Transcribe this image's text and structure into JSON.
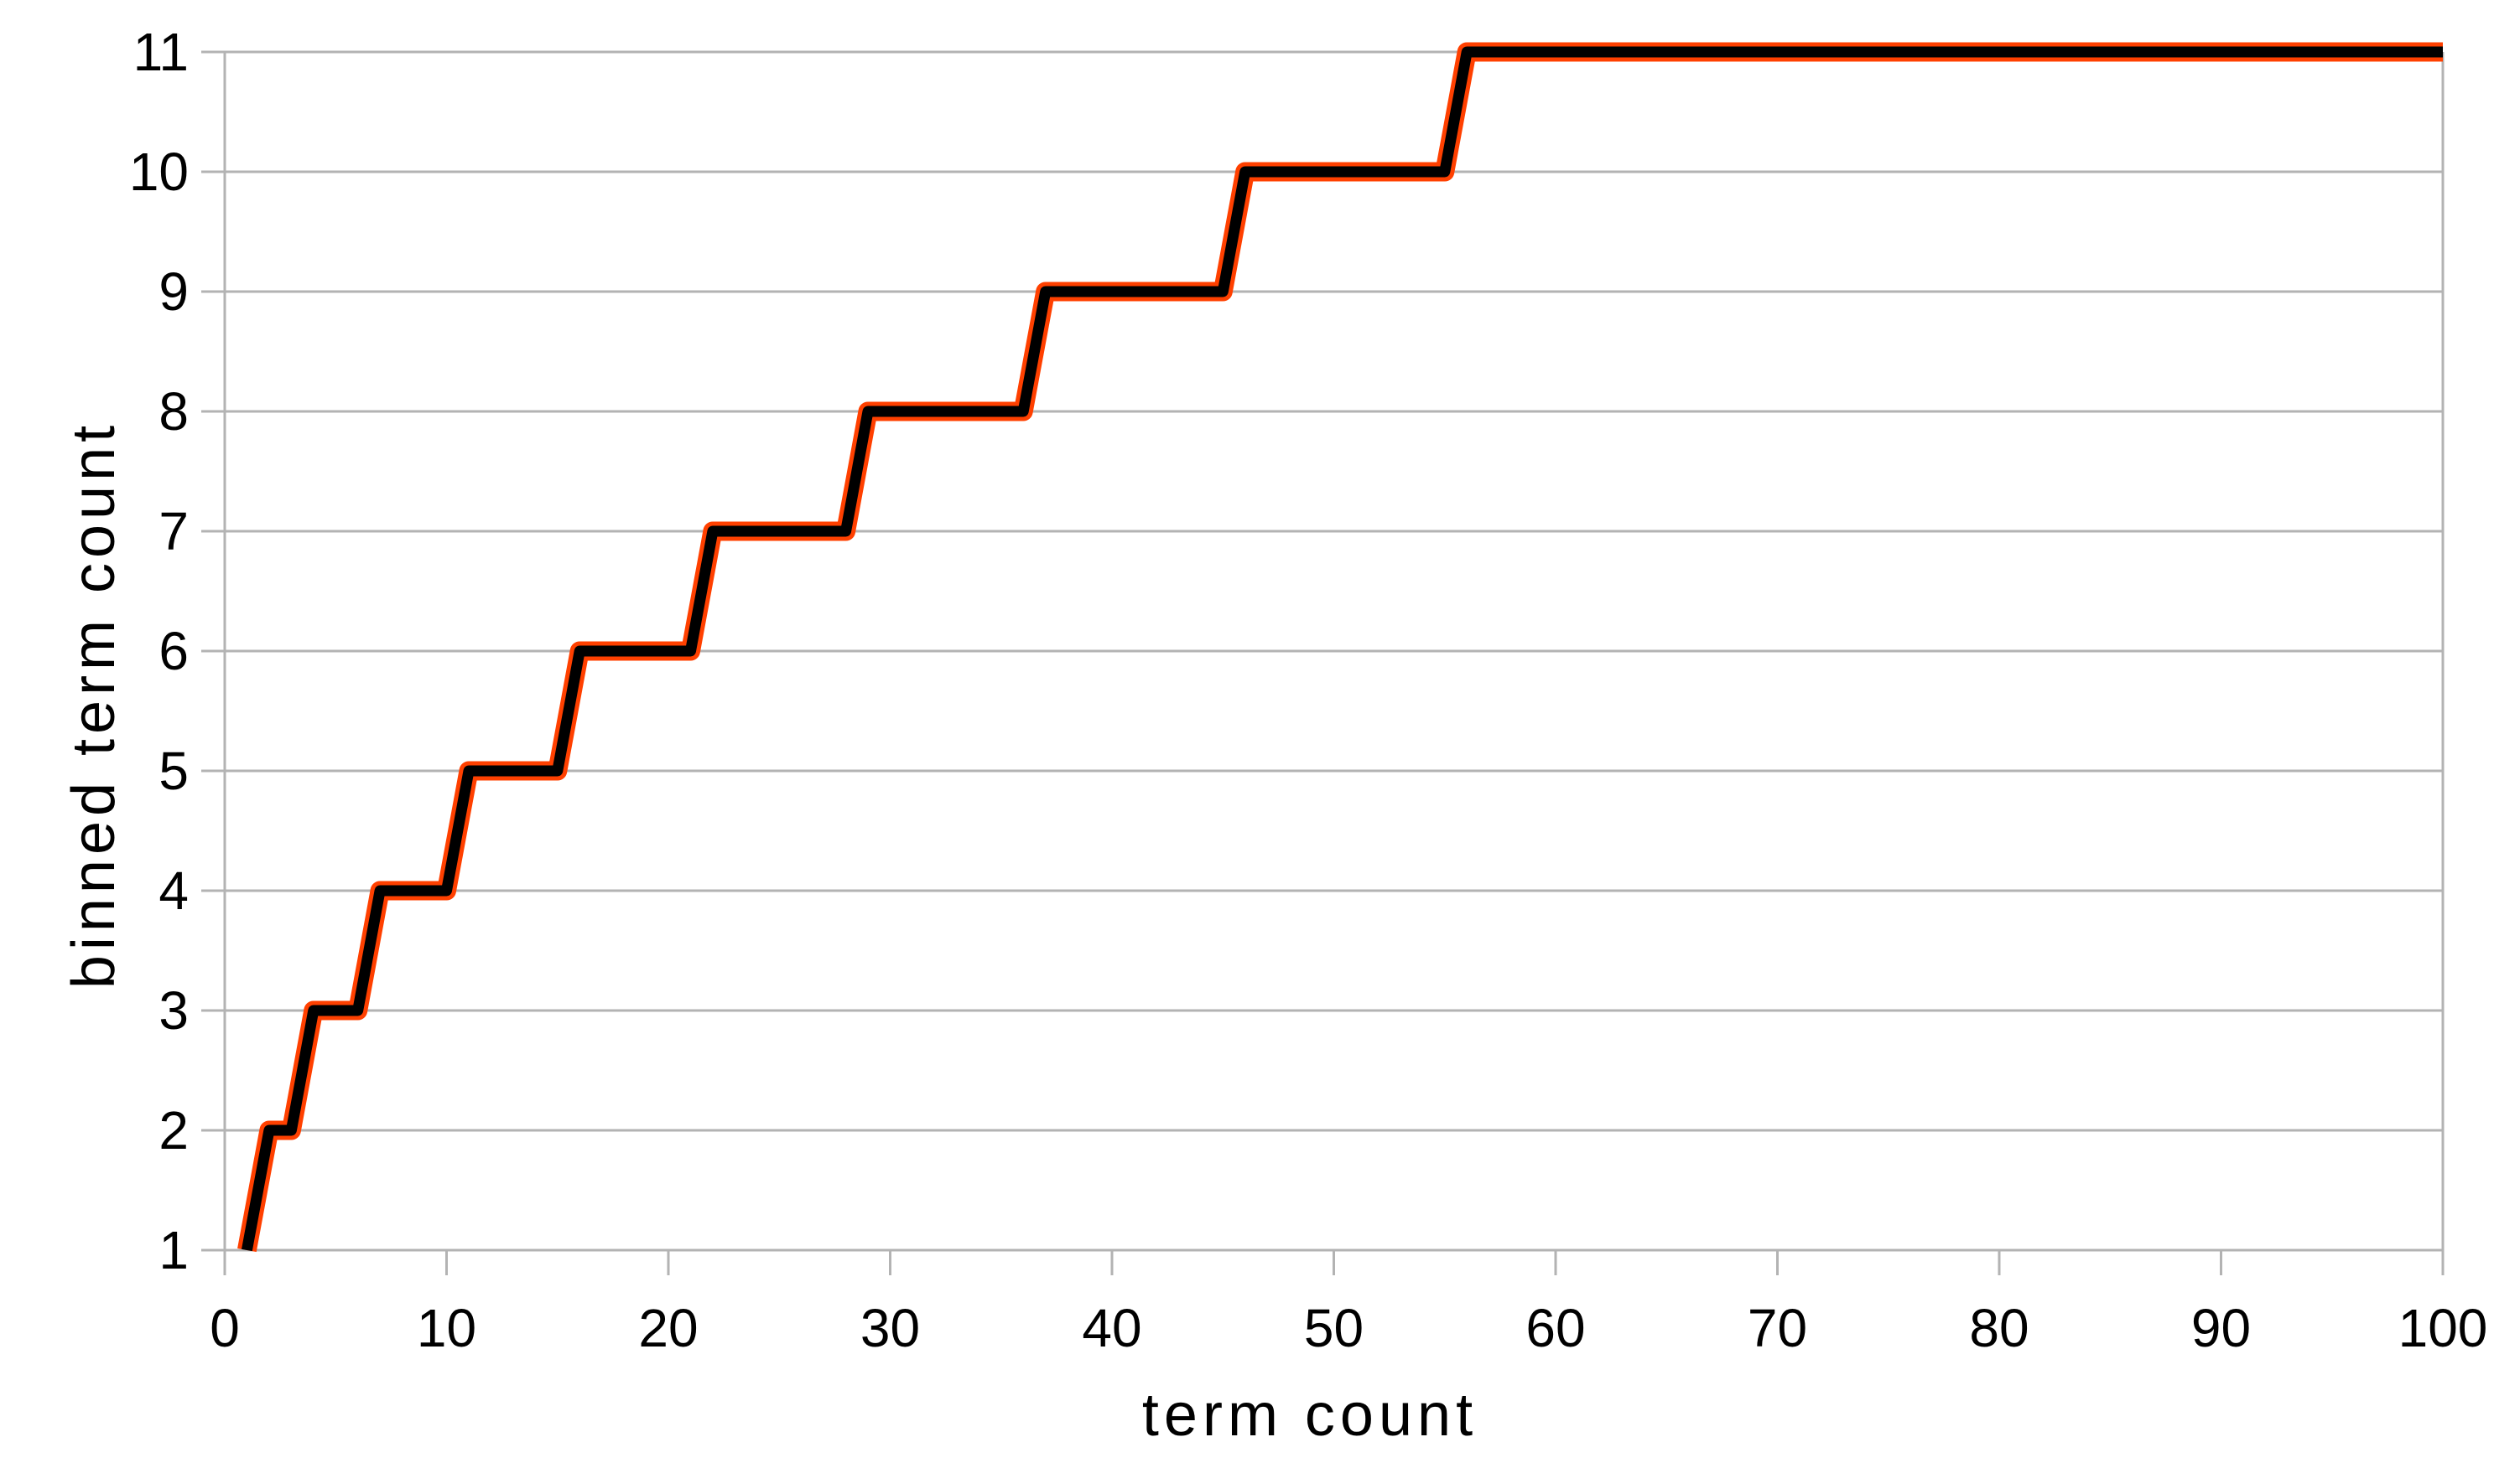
{
  "chart_data": {
    "type": "line",
    "subtype": "step",
    "title": "",
    "xlabel": "term count",
    "ylabel": "binned term count",
    "xlim": [
      0,
      100
    ],
    "ylim": [
      1,
      11
    ],
    "x_ticks": [
      0,
      10,
      20,
      30,
      40,
      50,
      60,
      70,
      80,
      90,
      100
    ],
    "y_ticks": [
      1,
      2,
      3,
      4,
      5,
      6,
      7,
      8,
      9,
      10,
      11
    ],
    "grid": "horizontal-only",
    "legend": "none",
    "series": [
      {
        "name": "binned term count",
        "points": [
          [
            1,
            1
          ],
          [
            2,
            2
          ],
          [
            3,
            2
          ],
          [
            4,
            3
          ],
          [
            6,
            3
          ],
          [
            7,
            4
          ],
          [
            10,
            4
          ],
          [
            11,
            5
          ],
          [
            15,
            5
          ],
          [
            16,
            6
          ],
          [
            21,
            6
          ],
          [
            22,
            7
          ],
          [
            28,
            7
          ],
          [
            29,
            8
          ],
          [
            36,
            8
          ],
          [
            37,
            9
          ],
          [
            45,
            9
          ],
          [
            46,
            10
          ],
          [
            55,
            10
          ],
          [
            56,
            11
          ],
          [
            100,
            11
          ]
        ],
        "step_completes_at_x": [
          1,
          2,
          4,
          7,
          11,
          16,
          22,
          29,
          37,
          46,
          56
        ],
        "max_value_cap": 11,
        "core_color": "#000000",
        "outline_color": "#ff4000"
      }
    ],
    "colors": {
      "background": "#ffffff",
      "gridline": "#b3b3b3",
      "text": "#000000"
    }
  }
}
